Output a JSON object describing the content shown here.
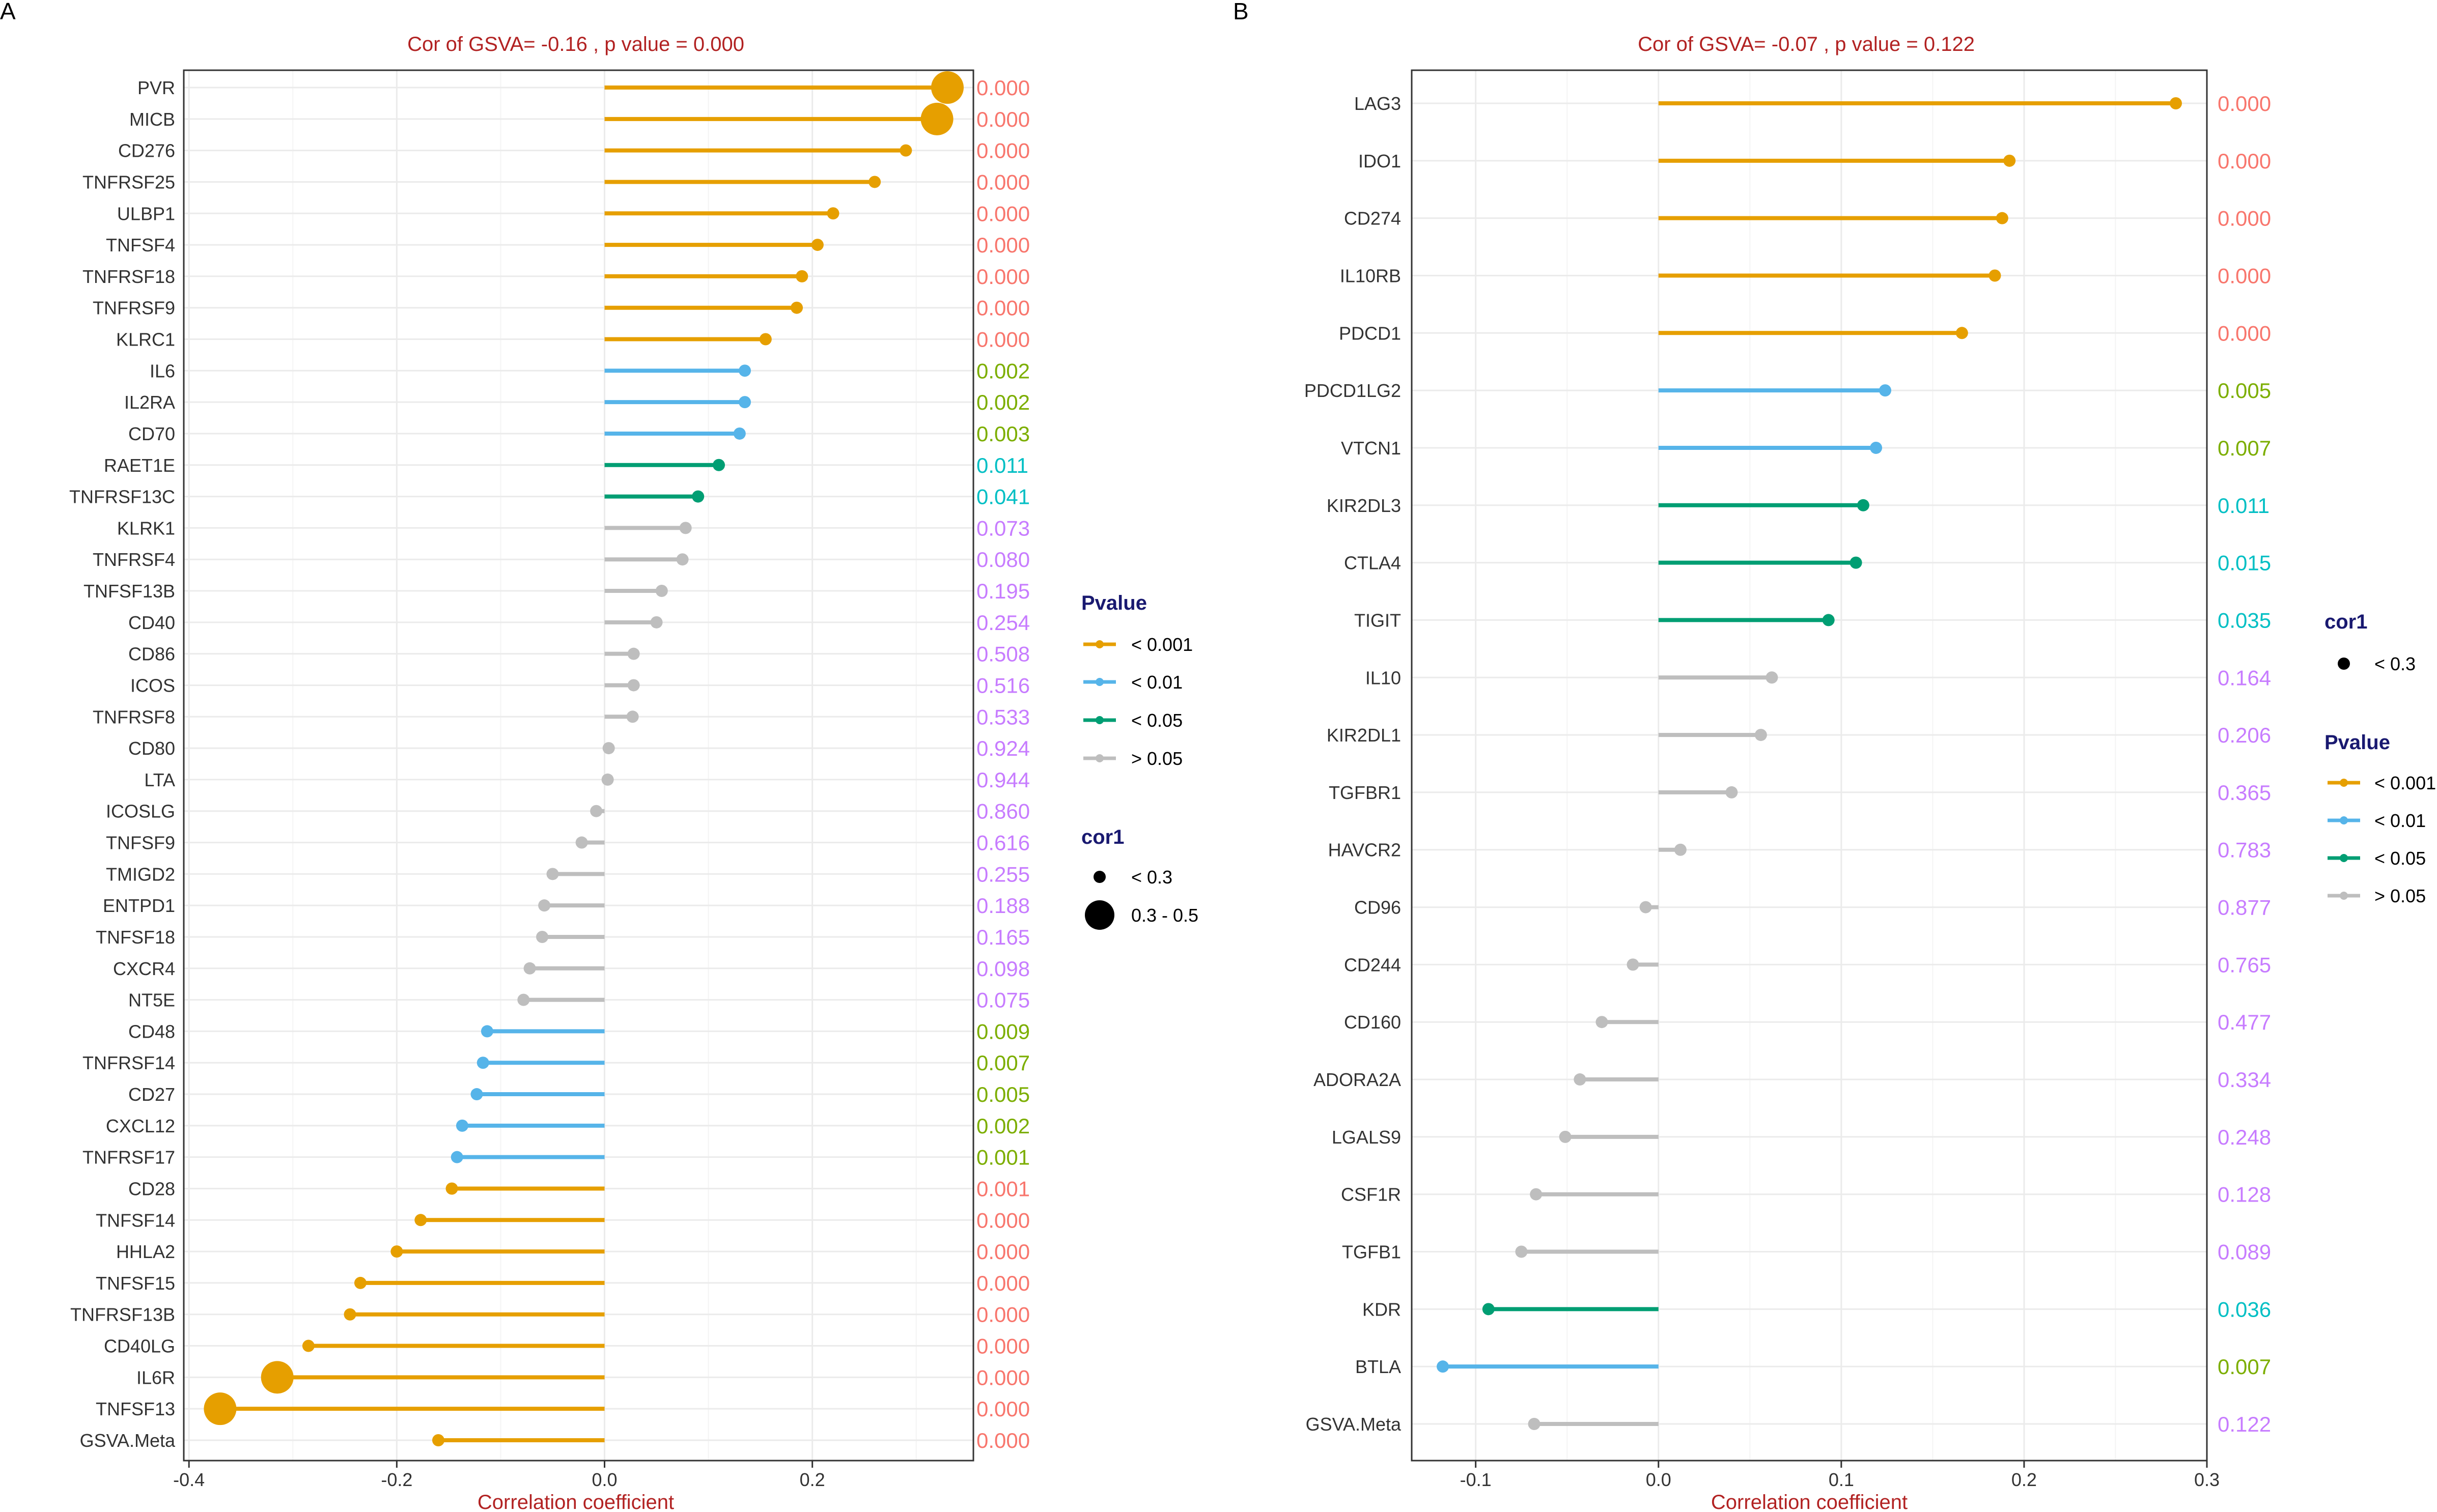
{
  "colors": {
    "p_lt_0001": "#E69F00",
    "p_lt_001": "#56B4E9",
    "p_lt_005": "#009E73",
    "p_gt_005": "#BEBEBE",
    "title_red": "#B22222",
    "legend_title_navy": "#191970",
    "text_p_lt_0001": "#F8766D",
    "text_p_lt_001": "#7CAE00",
    "text_p_lt_005": "#00BFC4",
    "text_p_gt_005": "#C77CFF"
  },
  "chart_data": [
    {
      "panel_label": "A",
      "type": "lollipop",
      "title": "Cor of GSVA= -0.16 , p value = 0.000",
      "xlabel": "Correlation coefficient",
      "ylabel": "",
      "xlim": [
        -0.405,
        0.355
      ],
      "xticks": [
        -0.4,
        -0.2,
        0.0,
        0.2
      ],
      "xtick_labels": [
        "-0.4",
        "-0.2",
        "0.0",
        "0.2"
      ],
      "grid": true,
      "legend_position": "right",
      "points": [
        {
          "label": "PVR",
          "value": 0.33,
          "pvalue": "0.000",
          "group": "< 0.001",
          "cor_group": "0.3 - 0.5"
        },
        {
          "label": "MICB",
          "value": 0.32,
          "pvalue": "0.000",
          "group": "< 0.001",
          "cor_group": "0.3 - 0.5"
        },
        {
          "label": "CD276",
          "value": 0.29,
          "pvalue": "0.000",
          "group": "< 0.001",
          "cor_group": "< 0.3"
        },
        {
          "label": "TNFRSF25",
          "value": 0.26,
          "pvalue": "0.000",
          "group": "< 0.001",
          "cor_group": "< 0.3"
        },
        {
          "label": "ULBP1",
          "value": 0.22,
          "pvalue": "0.000",
          "group": "< 0.001",
          "cor_group": "< 0.3"
        },
        {
          "label": "TNFSF4",
          "value": 0.205,
          "pvalue": "0.000",
          "group": "< 0.001",
          "cor_group": "< 0.3"
        },
        {
          "label": "TNFRSF18",
          "value": 0.19,
          "pvalue": "0.000",
          "group": "< 0.001",
          "cor_group": "< 0.3"
        },
        {
          "label": "TNFRSF9",
          "value": 0.185,
          "pvalue": "0.000",
          "group": "< 0.001",
          "cor_group": "< 0.3"
        },
        {
          "label": "KLRC1",
          "value": 0.155,
          "pvalue": "0.000",
          "group": "< 0.001",
          "cor_group": "< 0.3"
        },
        {
          "label": "IL6",
          "value": 0.135,
          "pvalue": "0.002",
          "group": "< 0.01",
          "cor_group": "< 0.3"
        },
        {
          "label": "IL2RA",
          "value": 0.135,
          "pvalue": "0.002",
          "group": "< 0.01",
          "cor_group": "< 0.3"
        },
        {
          "label": "CD70",
          "value": 0.13,
          "pvalue": "0.003",
          "group": "< 0.01",
          "cor_group": "< 0.3"
        },
        {
          "label": "RAET1E",
          "value": 0.11,
          "pvalue": "0.011",
          "group": "< 0.05",
          "cor_group": "< 0.3"
        },
        {
          "label": "TNFRSF13C",
          "value": 0.09,
          "pvalue": "0.041",
          "group": "< 0.05",
          "cor_group": "< 0.3"
        },
        {
          "label": "KLRK1",
          "value": 0.078,
          "pvalue": "0.073",
          "group": "> 0.05",
          "cor_group": "< 0.3"
        },
        {
          "label": "TNFRSF4",
          "value": 0.075,
          "pvalue": "0.080",
          "group": "> 0.05",
          "cor_group": "< 0.3"
        },
        {
          "label": "TNFSF13B",
          "value": 0.055,
          "pvalue": "0.195",
          "group": "> 0.05",
          "cor_group": "< 0.3"
        },
        {
          "label": "CD40",
          "value": 0.05,
          "pvalue": "0.254",
          "group": "> 0.05",
          "cor_group": "< 0.3"
        },
        {
          "label": "CD86",
          "value": 0.028,
          "pvalue": "0.508",
          "group": "> 0.05",
          "cor_group": "< 0.3"
        },
        {
          "label": "ICOS",
          "value": 0.028,
          "pvalue": "0.516",
          "group": "> 0.05",
          "cor_group": "< 0.3"
        },
        {
          "label": "TNFRSF8",
          "value": 0.027,
          "pvalue": "0.533",
          "group": "> 0.05",
          "cor_group": "< 0.3"
        },
        {
          "label": "CD80",
          "value": 0.004,
          "pvalue": "0.924",
          "group": "> 0.05",
          "cor_group": "< 0.3"
        },
        {
          "label": "LTA",
          "value": 0.003,
          "pvalue": "0.944",
          "group": "> 0.05",
          "cor_group": "< 0.3"
        },
        {
          "label": "ICOSLG",
          "value": -0.008,
          "pvalue": "0.860",
          "group": "> 0.05",
          "cor_group": "< 0.3"
        },
        {
          "label": "TNFSF9",
          "value": -0.022,
          "pvalue": "0.616",
          "group": "> 0.05",
          "cor_group": "< 0.3"
        },
        {
          "label": "TMIGD2",
          "value": -0.05,
          "pvalue": "0.255",
          "group": "> 0.05",
          "cor_group": "< 0.3"
        },
        {
          "label": "ENTPD1",
          "value": -0.058,
          "pvalue": "0.188",
          "group": "> 0.05",
          "cor_group": "< 0.3"
        },
        {
          "label": "TNFSF18",
          "value": -0.06,
          "pvalue": "0.165",
          "group": "> 0.05",
          "cor_group": "< 0.3"
        },
        {
          "label": "CXCR4",
          "value": -0.072,
          "pvalue": "0.098",
          "group": "> 0.05",
          "cor_group": "< 0.3"
        },
        {
          "label": "NT5E",
          "value": -0.078,
          "pvalue": "0.075",
          "group": "> 0.05",
          "cor_group": "< 0.3"
        },
        {
          "label": "CD48",
          "value": -0.113,
          "pvalue": "0.009",
          "group": "< 0.01",
          "cor_group": "< 0.3"
        },
        {
          "label": "TNFRSF14",
          "value": -0.117,
          "pvalue": "0.007",
          "group": "< 0.01",
          "cor_group": "< 0.3"
        },
        {
          "label": "CD27",
          "value": -0.123,
          "pvalue": "0.005",
          "group": "< 0.01",
          "cor_group": "< 0.3"
        },
        {
          "label": "CXCL12",
          "value": -0.137,
          "pvalue": "0.002",
          "group": "< 0.01",
          "cor_group": "< 0.3"
        },
        {
          "label": "TNFRSF17",
          "value": -0.142,
          "pvalue": "0.001",
          "group": "< 0.01",
          "cor_group": "< 0.3"
        },
        {
          "label": "CD28",
          "value": -0.147,
          "pvalue": "0.001",
          "group": "< 0.001",
          "cor_group": "< 0.3"
        },
        {
          "label": "TNFSF14",
          "value": -0.177,
          "pvalue": "0.000",
          "group": "< 0.001",
          "cor_group": "< 0.3"
        },
        {
          "label": "HHLA2",
          "value": -0.2,
          "pvalue": "0.000",
          "group": "< 0.001",
          "cor_group": "< 0.3"
        },
        {
          "label": "TNFSF15",
          "value": -0.235,
          "pvalue": "0.000",
          "group": "< 0.001",
          "cor_group": "< 0.3"
        },
        {
          "label": "TNFRSF13B",
          "value": -0.245,
          "pvalue": "0.000",
          "group": "< 0.001",
          "cor_group": "< 0.3"
        },
        {
          "label": "CD40LG",
          "value": -0.285,
          "pvalue": "0.000",
          "group": "< 0.001",
          "cor_group": "< 0.3"
        },
        {
          "label": "IL6R",
          "value": -0.315,
          "pvalue": "0.000",
          "group": "< 0.001",
          "cor_group": "0.3 - 0.5"
        },
        {
          "label": "TNFSF13",
          "value": -0.37,
          "pvalue": "0.000",
          "group": "< 0.001",
          "cor_group": "0.3 - 0.5"
        },
        {
          "label": "GSVA.Meta",
          "value": -0.16,
          "pvalue": "0.000",
          "group": "< 0.001",
          "cor_group": "< 0.3"
        }
      ],
      "legends": [
        {
          "title": "Pvalue",
          "kind": "line",
          "entries": [
            "< 0.001",
            "< 0.01",
            "< 0.05",
            "> 0.05"
          ]
        },
        {
          "title": "cor1",
          "kind": "size",
          "entries": [
            "< 0.3",
            "0.3 - 0.5"
          ]
        }
      ]
    },
    {
      "panel_label": "B",
      "type": "lollipop",
      "title": "Cor of GSVA= -0.07 , p value = 0.122",
      "xlabel": "Correlation coefficient",
      "ylabel": "",
      "xlim": [
        -0.135,
        0.3
      ],
      "xticks": [
        -0.1,
        0.0,
        0.1,
        0.2,
        0.3
      ],
      "xtick_labels": [
        "-0.1",
        "0.0",
        "0.1",
        "0.2",
        "0.3"
      ],
      "grid": true,
      "legend_position": "right",
      "points": [
        {
          "label": "LAG3",
          "value": 0.283,
          "pvalue": "0.000",
          "group": "< 0.001",
          "cor_group": "< 0.3"
        },
        {
          "label": "IDO1",
          "value": 0.192,
          "pvalue": "0.000",
          "group": "< 0.001",
          "cor_group": "< 0.3"
        },
        {
          "label": "CD274",
          "value": 0.188,
          "pvalue": "0.000",
          "group": "< 0.001",
          "cor_group": "< 0.3"
        },
        {
          "label": "IL10RB",
          "value": 0.184,
          "pvalue": "0.000",
          "group": "< 0.001",
          "cor_group": "< 0.3"
        },
        {
          "label": "PDCD1",
          "value": 0.166,
          "pvalue": "0.000",
          "group": "< 0.001",
          "cor_group": "< 0.3"
        },
        {
          "label": "PDCD1LG2",
          "value": 0.124,
          "pvalue": "0.005",
          "group": "< 0.01",
          "cor_group": "< 0.3"
        },
        {
          "label": "VTCN1",
          "value": 0.119,
          "pvalue": "0.007",
          "group": "< 0.01",
          "cor_group": "< 0.3"
        },
        {
          "label": "KIR2DL3",
          "value": 0.112,
          "pvalue": "0.011",
          "group": "< 0.05",
          "cor_group": "< 0.3"
        },
        {
          "label": "CTLA4",
          "value": 0.108,
          "pvalue": "0.015",
          "group": "< 0.05",
          "cor_group": "< 0.3"
        },
        {
          "label": "TIGIT",
          "value": 0.093,
          "pvalue": "0.035",
          "group": "< 0.05",
          "cor_group": "< 0.3"
        },
        {
          "label": "IL10",
          "value": 0.062,
          "pvalue": "0.164",
          "group": "> 0.05",
          "cor_group": "< 0.3"
        },
        {
          "label": "KIR2DL1",
          "value": 0.056,
          "pvalue": "0.206",
          "group": "> 0.05",
          "cor_group": "< 0.3"
        },
        {
          "label": "TGFBR1",
          "value": 0.04,
          "pvalue": "0.365",
          "group": "> 0.05",
          "cor_group": "< 0.3"
        },
        {
          "label": "HAVCR2",
          "value": 0.012,
          "pvalue": "0.783",
          "group": "> 0.05",
          "cor_group": "< 0.3"
        },
        {
          "label": "CD96",
          "value": -0.007,
          "pvalue": "0.877",
          "group": "> 0.05",
          "cor_group": "< 0.3"
        },
        {
          "label": "CD244",
          "value": -0.014,
          "pvalue": "0.765",
          "group": "> 0.05",
          "cor_group": "< 0.3"
        },
        {
          "label": "CD160",
          "value": -0.031,
          "pvalue": "0.477",
          "group": "> 0.05",
          "cor_group": "< 0.3"
        },
        {
          "label": "ADORA2A",
          "value": -0.043,
          "pvalue": "0.334",
          "group": "> 0.05",
          "cor_group": "< 0.3"
        },
        {
          "label": "LGALS9",
          "value": -0.051,
          "pvalue": "0.248",
          "group": "> 0.05",
          "cor_group": "< 0.3"
        },
        {
          "label": "CSF1R",
          "value": -0.067,
          "pvalue": "0.128",
          "group": "> 0.05",
          "cor_group": "< 0.3"
        },
        {
          "label": "TGFB1",
          "value": -0.075,
          "pvalue": "0.089",
          "group": "> 0.05",
          "cor_group": "< 0.3"
        },
        {
          "label": "KDR",
          "value": -0.093,
          "pvalue": "0.036",
          "group": "< 0.05",
          "cor_group": "< 0.3"
        },
        {
          "label": "BTLA",
          "value": -0.118,
          "pvalue": "0.007",
          "group": "< 0.01",
          "cor_group": "< 0.3"
        },
        {
          "label": "GSVA.Meta",
          "value": -0.068,
          "pvalue": "0.122",
          "group": "> 0.05",
          "cor_group": "< 0.3"
        }
      ],
      "legends": [
        {
          "title": "cor1",
          "kind": "size",
          "entries": [
            "< 0.3"
          ]
        },
        {
          "title": "Pvalue",
          "kind": "line",
          "entries": [
            "< 0.001",
            "< 0.01",
            "< 0.05",
            "> 0.05"
          ]
        }
      ]
    }
  ]
}
